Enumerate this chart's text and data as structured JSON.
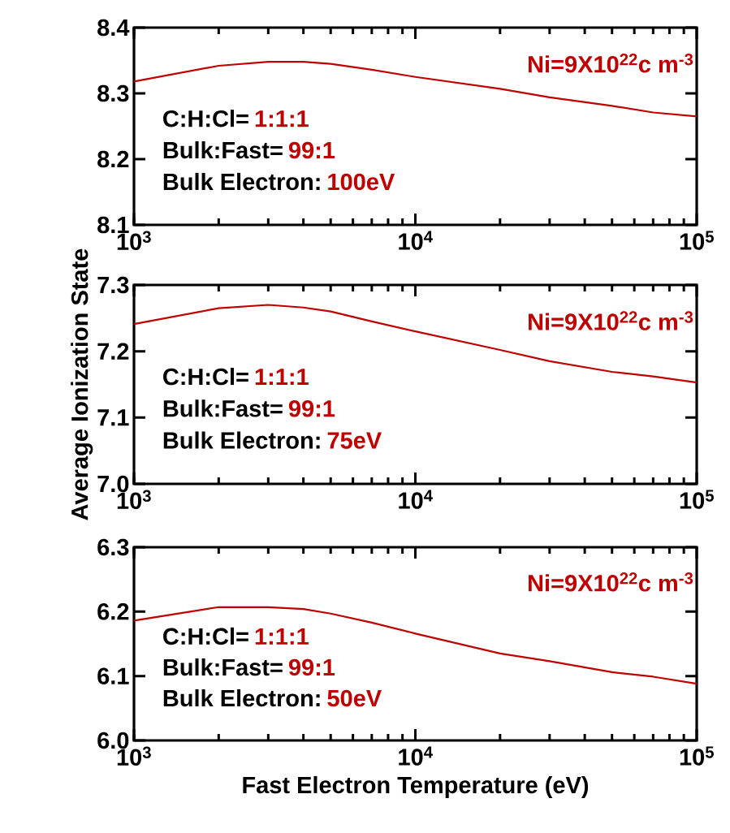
{
  "chart_data": [
    {
      "type": "line",
      "log": "x",
      "x": [
        1000,
        2000,
        3000,
        4000,
        5000,
        7000,
        10000,
        20000,
        30000,
        50000,
        70000,
        100000
      ],
      "series": [
        {
          "color": "#c00000",
          "values": [
            8.318,
            8.342,
            8.348,
            8.348,
            8.345,
            8.336,
            8.325,
            8.307,
            8.294,
            8.281,
            8.271,
            8.265
          ]
        }
      ],
      "xlim": [
        1000,
        100000
      ],
      "xticks": [
        {
          "value": 1000,
          "label": "10$^{3}$"
        },
        {
          "value": 10000,
          "label": "10$^{4}$"
        },
        {
          "value": 100000,
          "label": "10$^{5}$"
        }
      ],
      "ylim": [
        8.1,
        8.4
      ],
      "yticks": [
        {
          "value": 8.1,
          "label": "8.1"
        },
        {
          "value": 8.2,
          "label": "8.2"
        },
        {
          "value": 8.3,
          "label": "8.3"
        },
        {
          "value": 8.4,
          "label": "8.4"
        }
      ],
      "annotations": [
        "Ni=9X10$^{22}$c m$^{-3}$",
        "C:H:Cl=",
        "1:1:1",
        "Bulk:Fast=",
        "99:1",
        "Bulk Electron:",
        "100eV"
      ]
    },
    {
      "type": "line",
      "log": "x",
      "ylabel": "Average Ionization State",
      "x": [
        1000,
        2000,
        3000,
        4000,
        5000,
        7000,
        10000,
        20000,
        30000,
        50000,
        70000,
        100000
      ],
      "series": [
        {
          "color": "#c00000",
          "values": [
            7.241,
            7.265,
            7.27,
            7.266,
            7.26,
            7.245,
            7.23,
            7.202,
            7.185,
            7.169,
            7.162,
            7.153
          ]
        }
      ],
      "xlim": [
        1000,
        100000
      ],
      "xticks": [
        {
          "value": 1000,
          "label": "10$^{3}$"
        },
        {
          "value": 10000,
          "label": "10$^{4}$"
        },
        {
          "value": 100000,
          "label": "10$^{5}$"
        }
      ],
      "ylim": [
        7.0,
        7.3
      ],
      "yticks": [
        {
          "value": 7.0,
          "label": "7.0"
        },
        {
          "value": 7.1,
          "label": "7.1"
        },
        {
          "value": 7.2,
          "label": "7.2"
        },
        {
          "value": 7.3,
          "label": "7.3"
        }
      ],
      "annotations": [
        "Ni=9X10$^{22}$c m$^{-3}$",
        "C:H:Cl=",
        "1:1:1",
        "Bulk:Fast=",
        "99:1",
        "Bulk Electron:",
        "75eV"
      ]
    },
    {
      "type": "line",
      "log": "x",
      "xlabel": "Fast Electron Temperature (eV)",
      "x": [
        1000,
        2000,
        3000,
        4000,
        5000,
        7000,
        10000,
        20000,
        30000,
        50000,
        70000,
        100000
      ],
      "series": [
        {
          "color": "#c00000",
          "values": [
            6.186,
            6.207,
            6.207,
            6.204,
            6.197,
            6.183,
            6.166,
            6.135,
            6.123,
            6.106,
            6.099,
            6.088
          ]
        }
      ],
      "xlim": [
        1000,
        100000
      ],
      "xticks": [
        {
          "value": 1000,
          "label": "10$^{3}$"
        },
        {
          "value": 10000,
          "label": "10$^{4}$"
        },
        {
          "value": 100000,
          "label": "10$^{5}$"
        }
      ],
      "ylim": [
        6.0,
        6.3
      ],
      "yticks": [
        {
          "value": 6.0,
          "label": "6.0"
        },
        {
          "value": 6.1,
          "label": "6.1"
        },
        {
          "value": 6.2,
          "label": "6.2"
        },
        {
          "value": 6.3,
          "label": "6.3"
        }
      ],
      "annotations": [
        "Ni=9X10$^{22}$c m$^{-3}$",
        "C:H:Cl=",
        "1:1:1",
        "Bulk:Fast=",
        "99:1",
        "Bulk Electron:",
        "50eV"
      ]
    }
  ]
}
